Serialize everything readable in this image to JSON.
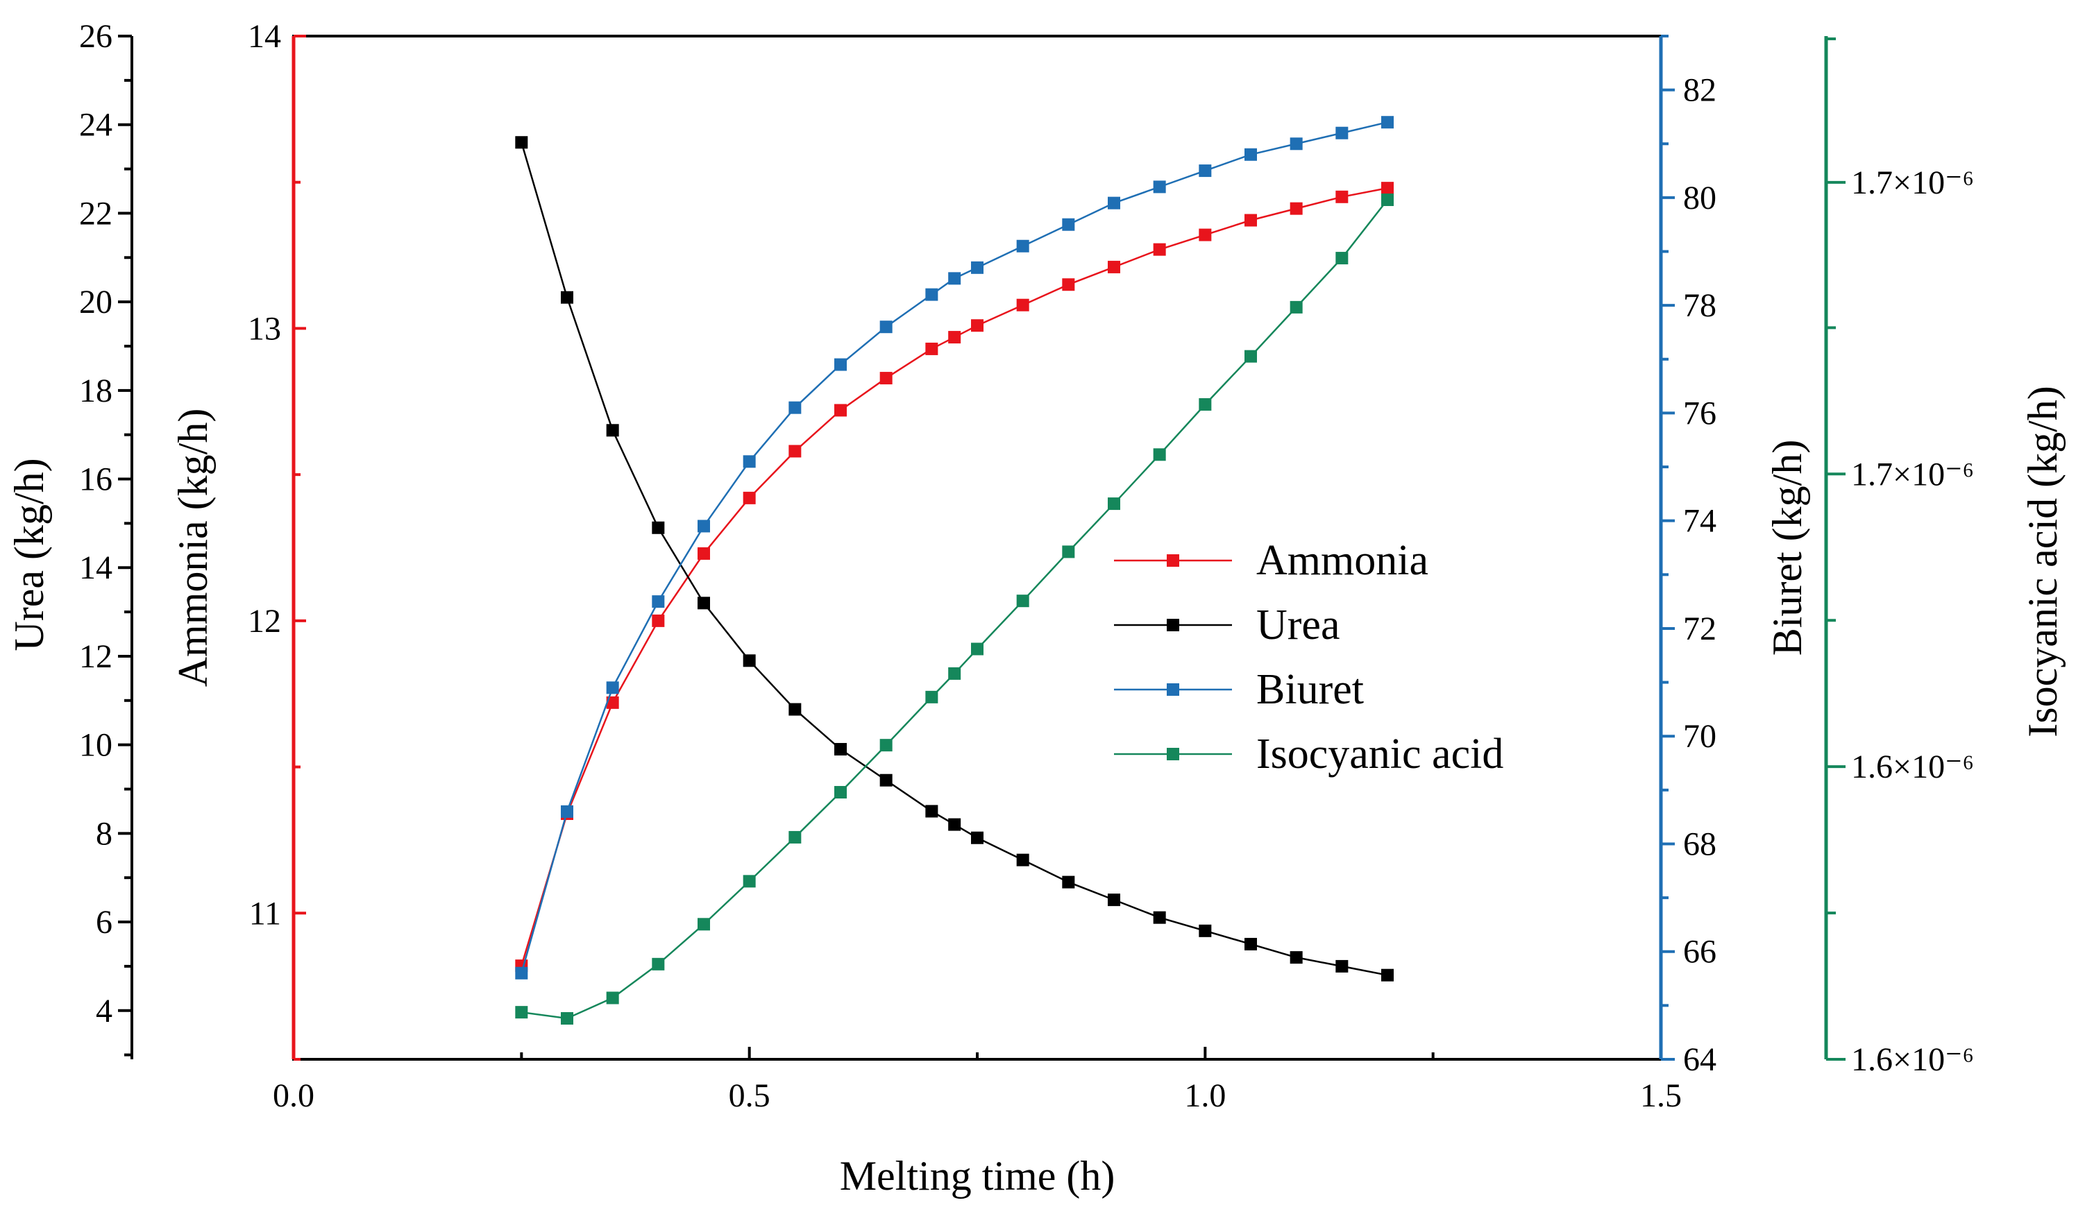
{
  "chart_data": {
    "type": "line",
    "title": "",
    "xlabel": "Melting time (h)",
    "xlim": [
      0,
      1.5
    ],
    "x_ticks": [
      "0.0",
      "0.5",
      "1.0",
      "1.5"
    ],
    "x": [
      0.25,
      0.3,
      0.35,
      0.4,
      0.45,
      0.5,
      0.55,
      0.6,
      0.65,
      0.7,
      0.725,
      0.75,
      0.8,
      0.85,
      0.9,
      0.95,
      1.0,
      1.05,
      1.1,
      1.15,
      1.2
    ],
    "axes": {
      "urea": {
        "label": "Urea (kg/h)",
        "ylim": [
          2.9,
          26
        ],
        "ticks": [
          "4",
          "6",
          "8",
          "10",
          "12",
          "14",
          "16",
          "18",
          "20",
          "22",
          "24",
          "26"
        ],
        "color": "#000000"
      },
      "ammonia": {
        "label": "Ammonia (kg/h)",
        "ylim": [
          10.5,
          14
        ],
        "ticks": [
          "11",
          "12",
          "13",
          "14"
        ],
        "color": "#e8141c"
      },
      "biuret": {
        "label": "Biuret (kg/h)",
        "ylim": [
          64,
          83
        ],
        "ticks": [
          "64",
          "66",
          "68",
          "70",
          "72",
          "74",
          "76",
          "78",
          "80",
          "82"
        ],
        "color": "#1f6fb4"
      },
      "isocyanic": {
        "label": "Isocyanic acid (kg/h)",
        "ticks": [
          "1.6×10⁻⁶",
          "1.6×10⁻⁶",
          "1.7×10⁻⁶",
          "1.7×10⁻⁶"
        ],
        "color": "#15875b"
      }
    },
    "series": [
      {
        "name": "Ammonia",
        "axis": "ammonia",
        "color": "#e8141c",
        "values": [
          10.82,
          11.34,
          11.72,
          12.0,
          12.23,
          12.42,
          12.58,
          12.72,
          12.83,
          12.93,
          12.97,
          13.01,
          13.08,
          13.15,
          13.21,
          13.27,
          13.32,
          13.37,
          13.41,
          13.45,
          13.48
        ]
      },
      {
        "name": "Urea",
        "axis": "urea",
        "color": "#000000",
        "values": [
          23.6,
          20.1,
          17.1,
          14.9,
          13.2,
          11.9,
          10.8,
          9.9,
          9.2,
          8.5,
          8.2,
          7.9,
          7.4,
          6.9,
          6.5,
          6.1,
          5.8,
          5.5,
          5.2,
          5.0,
          4.8
        ]
      },
      {
        "name": "Biuret",
        "axis": "biuret",
        "color": "#1f6fb4",
        "values": [
          65.6,
          68.6,
          70.9,
          72.5,
          73.9,
          75.1,
          76.1,
          76.9,
          77.6,
          78.2,
          78.5,
          78.7,
          79.1,
          79.5,
          79.9,
          80.2,
          80.5,
          80.8,
          81.0,
          81.2,
          81.4
        ]
      },
      {
        "name": "Isocyanic acid",
        "axis": "isocyanic",
        "color": "#15875b",
        "rel_values": [
          0.046,
          0.04,
          0.06,
          0.093,
          0.132,
          0.174,
          0.217,
          0.261,
          0.307,
          0.354,
          0.377,
          0.401,
          0.448,
          0.496,
          0.543,
          0.591,
          0.64,
          0.687,
          0.735,
          0.783,
          0.84
        ]
      }
    ],
    "legend": {
      "position": "right-middle",
      "entries": [
        "Ammonia",
        "Urea",
        "Biuret",
        "Isocyanic acid"
      ]
    }
  }
}
